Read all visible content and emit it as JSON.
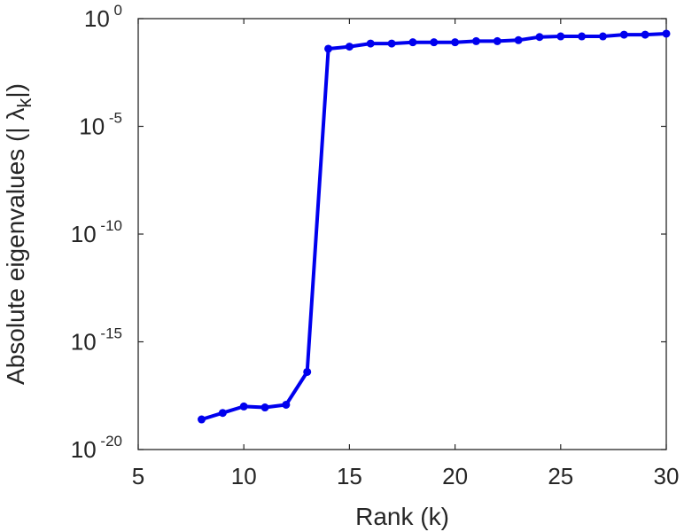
{
  "chart_data": {
    "type": "line",
    "xlabel": "Rank (k)",
    "ylabel": {
      "text": "Absolute eigenvalues (|",
      "symbol": "λ",
      "subscript": "k",
      "suffix": "|)"
    },
    "xlim": [
      5,
      30
    ],
    "ylim_exponent": [
      -20,
      0
    ],
    "y_scale": "log",
    "grid": false,
    "x_ticks": [
      5,
      10,
      15,
      20,
      25,
      30
    ],
    "x_tick_labels": [
      "5",
      "10",
      "15",
      "20",
      "25",
      "30"
    ],
    "y_ticks": [
      {
        "base": "10",
        "exponent": "-20",
        "value": -20
      },
      {
        "base": "10",
        "exponent": "-15",
        "value": -15
      },
      {
        "base": "10",
        "exponent": "-10",
        "value": -10
      },
      {
        "base": "10",
        "exponent": "-5",
        "value": -5
      },
      {
        "base": "10",
        "exponent": "0",
        "value": 0
      }
    ],
    "series": [
      {
        "color": "#0000ee",
        "marker": "circle",
        "points": [
          {
            "x": 8,
            "y": 2.5e-19
          },
          {
            "x": 9,
            "y": 5e-19
          },
          {
            "x": 10,
            "y": 1e-18
          },
          {
            "x": 11,
            "y": 9e-19
          },
          {
            "x": 12,
            "y": 1.2e-18
          },
          {
            "x": 13,
            "y": 4e-17
          },
          {
            "x": 14,
            "y": 0.04
          },
          {
            "x": 15,
            "y": 0.05
          },
          {
            "x": 16,
            "y": 0.07
          },
          {
            "x": 17,
            "y": 0.07
          },
          {
            "x": 18,
            "y": 0.08
          },
          {
            "x": 19,
            "y": 0.08
          },
          {
            "x": 20,
            "y": 0.08
          },
          {
            "x": 21,
            "y": 0.09
          },
          {
            "x": 22,
            "y": 0.09
          },
          {
            "x": 23,
            "y": 0.1
          },
          {
            "x": 24,
            "y": 0.14
          },
          {
            "x": 25,
            "y": 0.15
          },
          {
            "x": 26,
            "y": 0.15
          },
          {
            "x": 27,
            "y": 0.15
          },
          {
            "x": 28,
            "y": 0.18
          },
          {
            "x": 29,
            "y": 0.18
          },
          {
            "x": 30,
            "y": 0.2
          }
        ]
      }
    ]
  }
}
